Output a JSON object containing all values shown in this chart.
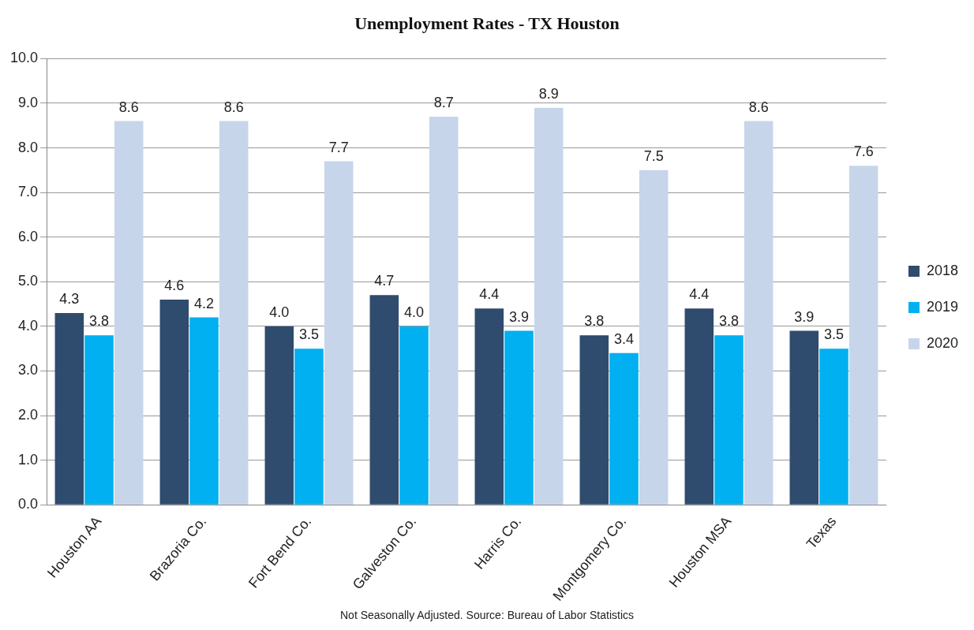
{
  "chart_data": {
    "type": "bar",
    "title": "Unemployment Rates - TX Houston",
    "categories": [
      "Houston AA",
      "Brazoria Co.",
      "Fort Bend Co.",
      "Galveston Co.",
      "Harris Co.",
      "Montgomery Co.",
      "Houston MSA",
      "Texas"
    ],
    "series": [
      {
        "name": "2018",
        "color": "#2f4b6e",
        "values": [
          4.3,
          4.6,
          4.0,
          4.7,
          4.4,
          3.8,
          4.4,
          3.9
        ],
        "value_labels": [
          "4.3",
          "4.6",
          "4.0",
          "4.7",
          "4.4",
          "3.8",
          "4.4",
          "3.9"
        ]
      },
      {
        "name": "2019",
        "color": "#00b0f0",
        "values": [
          3.8,
          4.2,
          3.5,
          4.0,
          3.9,
          3.4,
          3.8,
          3.5
        ],
        "value_labels": [
          "3.8",
          "4.2",
          "3.5",
          "4.0",
          "3.9",
          "3.4",
          "3.8",
          "3.5"
        ]
      },
      {
        "name": "2020",
        "color": "#c6d5ea",
        "values": [
          8.6,
          8.6,
          7.7,
          8.7,
          8.9,
          7.5,
          8.6,
          7.6
        ],
        "value_labels": [
          "8.6",
          "8.6",
          "7.7",
          "8.7",
          "8.9",
          "7.5",
          "8.6",
          "7.6"
        ]
      }
    ],
    "ylim": [
      0,
      10
    ],
    "yticks": [
      {
        "value": 0,
        "label": "0.0"
      },
      {
        "value": 1,
        "label": "1.0"
      },
      {
        "value": 2,
        "label": "2.0"
      },
      {
        "value": 3,
        "label": "3.0"
      },
      {
        "value": 4,
        "label": "4.0"
      },
      {
        "value": 5,
        "label": "5.0"
      },
      {
        "value": 6,
        "label": "6.0"
      },
      {
        "value": 7,
        "label": "7.0"
      },
      {
        "value": 8,
        "label": "8.0"
      },
      {
        "value": 9,
        "label": "9.0"
      },
      {
        "value": 10,
        "label": "10.0"
      }
    ],
    "grid": "y",
    "legend": "right",
    "annotations": [
      "Not Seasonally Adjusted.   Source: Bureau of Labor Statistics"
    ]
  }
}
